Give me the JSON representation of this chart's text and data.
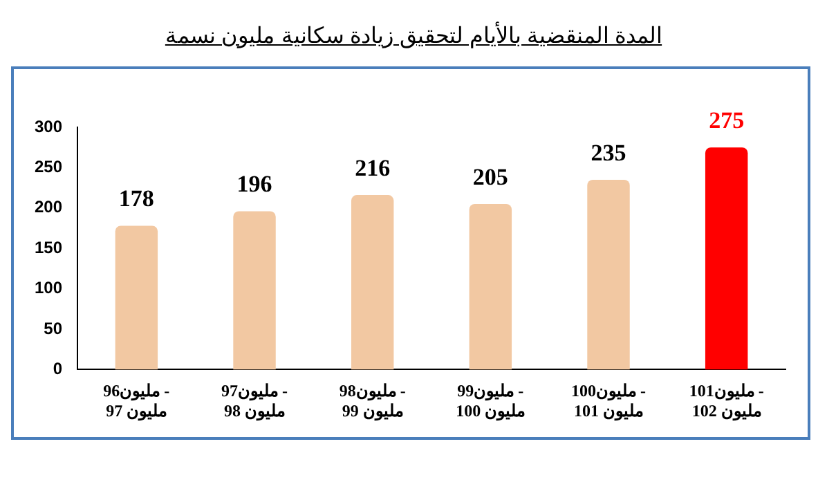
{
  "chart_data": {
    "type": "bar",
    "title": "المدة المنقضية بالأيام لتحقيق زيادة سكانية مليون نسمة",
    "categories": [
      "96مليون - 97 مليون",
      "97مليون - 98 مليون",
      "98مليون - 99 مليون",
      "99مليون - 100 مليون",
      "100مليون - 101 مليون",
      "101مليون - 102 مليون"
    ],
    "values": [
      178,
      196,
      216,
      205,
      235,
      275
    ],
    "colors": [
      "#f2c8a2",
      "#f2c8a2",
      "#f2c8a2",
      "#f2c8a2",
      "#f2c8a2",
      "#ff0000"
    ],
    "ylim": [
      0,
      300
    ],
    "yticks": [
      0,
      50,
      100,
      150,
      200,
      250,
      300
    ],
    "grid": false,
    "legend": false,
    "data_labels": true
  }
}
